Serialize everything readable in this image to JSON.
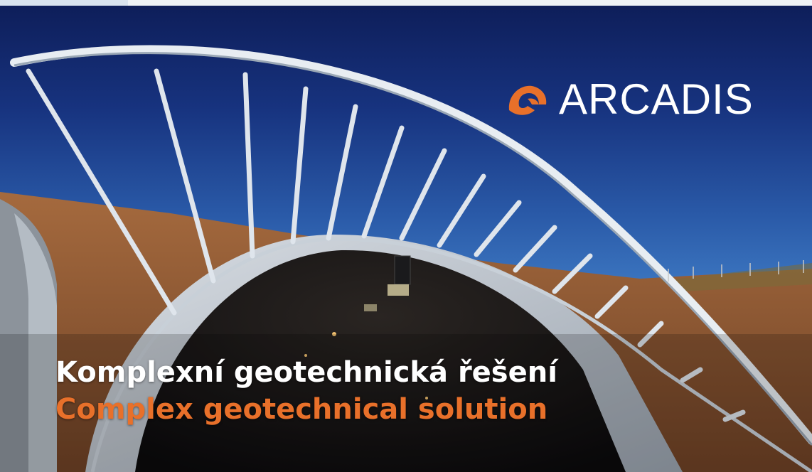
{
  "brand": {
    "name": "ARCADIS",
    "logo_icon": "arcadis-swoosh-icon",
    "accent_color": "#e8702a"
  },
  "headline": {
    "czech": "Komplexní geotechnická řešení",
    "english": "Complex geotechnical solution"
  },
  "colors": {
    "sky_top": "#0e1e5a",
    "sky_bottom": "#5290cf",
    "soil": "#8a5634",
    "text_primary": "#ffffff",
    "text_accent": "#e8702a"
  }
}
